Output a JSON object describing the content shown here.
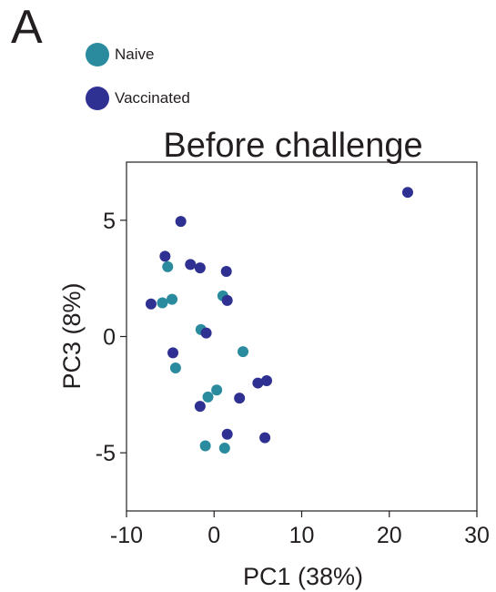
{
  "panel_label": "A",
  "colors": {
    "naive": "#2a8a9e",
    "vaccinated": "#2e3192",
    "axis": "#231f20"
  },
  "legend": [
    {
      "label": "Naive",
      "color": "#2a8a9e"
    },
    {
      "label": "Vaccinated",
      "color": "#2e3192"
    }
  ],
  "chart_data": {
    "type": "scatter",
    "title": "Before challenge",
    "xlabel": "PC1 (38%)",
    "ylabel": "PC3 (8%)",
    "xlim": [
      -10,
      30
    ],
    "ylim": [
      -7.5,
      7.5
    ],
    "xticks": [
      -10,
      0,
      10,
      20,
      30
    ],
    "yticks": [
      5,
      0,
      -5
    ],
    "xtick_labels": [
      "-10",
      "0",
      "10",
      "20",
      "30"
    ],
    "ytick_labels": [
      "5",
      "0",
      "-5"
    ],
    "grid": false,
    "legend_position": "top-left",
    "series": [
      {
        "name": "Naive",
        "color": "#2a8a9e",
        "points": [
          [
            -5.3,
            3.0
          ],
          [
            -5.9,
            1.45
          ],
          [
            -4.8,
            1.6
          ],
          [
            1.0,
            1.75
          ],
          [
            -1.5,
            0.3
          ],
          [
            3.3,
            -0.65
          ],
          [
            -4.4,
            -1.35
          ],
          [
            0.3,
            -2.3
          ],
          [
            -0.7,
            -2.6
          ],
          [
            -1.0,
            -4.7
          ],
          [
            1.2,
            -4.8
          ]
        ]
      },
      {
        "name": "Vaccinated",
        "color": "#2e3192",
        "points": [
          [
            22.1,
            6.2
          ],
          [
            -3.8,
            4.95
          ],
          [
            -5.6,
            3.45
          ],
          [
            -2.7,
            3.1
          ],
          [
            -1.6,
            2.95
          ],
          [
            1.4,
            2.8
          ],
          [
            -7.2,
            1.4
          ],
          [
            1.5,
            1.55
          ],
          [
            -0.9,
            0.15
          ],
          [
            -4.7,
            -0.7
          ],
          [
            6.0,
            -1.9
          ],
          [
            5.0,
            -2.0
          ],
          [
            2.9,
            -2.65
          ],
          [
            -1.6,
            -3.0
          ],
          [
            1.5,
            -4.2
          ],
          [
            5.8,
            -4.35
          ]
        ]
      }
    ]
  }
}
